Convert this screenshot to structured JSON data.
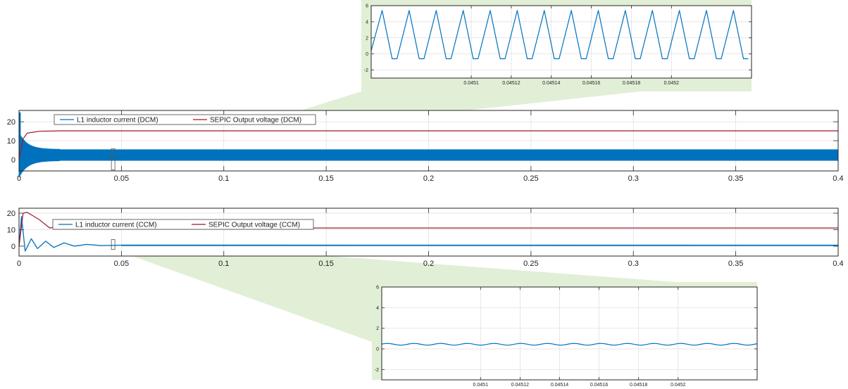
{
  "colors": {
    "current": "#0072BD",
    "voltage": "#A2142F",
    "zoom_shade": "#d7e9c8",
    "grid": "#dddddd",
    "axes": "#262626"
  },
  "chart_data": [
    {
      "id": "dcm_main",
      "type": "line",
      "title": "",
      "xlabel": "",
      "ylabel": "",
      "xlim": [
        0,
        0.4
      ],
      "ylim": [
        -6,
        26
      ],
      "xticks": [
        0,
        0.05,
        0.1,
        0.15,
        0.2,
        0.25,
        0.3,
        0.35,
        0.4
      ],
      "xtick_labels": [
        "0",
        "0.05",
        "0.1",
        "0.15",
        "0.2",
        "0.25",
        "0.3",
        "0.35",
        "0.4"
      ],
      "yticks": [
        0,
        10,
        20
      ],
      "ytick_labels": [
        "0",
        "10",
        "20"
      ],
      "grid": true,
      "legend": {
        "placement": "top-left",
        "orientation": "horizontal"
      },
      "series": [
        {
          "name": "L1 inductor current (DCM)",
          "color_key": "current",
          "description_values": {
            "min": -0.6,
            "max": 5.4,
            "start_peak": 25,
            "steady_band": [
              -0.6,
              5.4
            ]
          }
        },
        {
          "name": "SEPIC Output voltage (DCM)",
          "color_key": "voltage",
          "values_xy": [
            [
              0,
              0
            ],
            [
              0.002,
              11
            ],
            [
              0.004,
              14
            ],
            [
              0.01,
              15
            ],
            [
              0.02,
              15.2
            ],
            [
              0.4,
              15.2
            ]
          ]
        }
      ],
      "zoom_window_x": [
        0.0451,
        0.0453
      ]
    },
    {
      "id": "dcm_zoom",
      "type": "line",
      "title": "",
      "xlim": [
        0.04505,
        0.04524
      ],
      "ylim": [
        -3,
        6
      ],
      "xticks": [
        0.0451,
        0.04512,
        0.04514,
        0.04516,
        0.04518,
        0.0452
      ],
      "xtick_labels": [
        "0.0451",
        "0.04512",
        "0.04514",
        "0.04516",
        "0.04518",
        "0.0452"
      ],
      "yticks": [
        -2,
        0,
        2,
        4,
        6
      ],
      "ytick_labels": [
        "-2",
        "0",
        "2",
        "4",
        "6"
      ],
      "grid": true,
      "series": [
        {
          "name": "L1 inductor current (DCM)",
          "color_key": "current",
          "waveform": {
            "period": 1.35e-05,
            "peak": 5.4,
            "floor": -0.6,
            "rise_fraction": 0.45,
            "fall_fraction": 0.37
          }
        }
      ]
    },
    {
      "id": "ccm_main",
      "type": "line",
      "title": "",
      "xlim": [
        0,
        0.4
      ],
      "ylim": [
        -6,
        23
      ],
      "xticks": [
        0,
        0.05,
        0.1,
        0.15,
        0.2,
        0.25,
        0.3,
        0.35,
        0.4
      ],
      "xtick_labels": [
        "0",
        "0.05",
        "0.1",
        "0.15",
        "0.2",
        "0.25",
        "0.3",
        "0.35",
        "0.4"
      ],
      "yticks": [
        0,
        10,
        20
      ],
      "ytick_labels": [
        "0",
        "10",
        "20"
      ],
      "grid": true,
      "legend": {
        "placement": "top-left",
        "orientation": "horizontal"
      },
      "series": [
        {
          "name": "L1 inductor current (CCM)",
          "color_key": "current",
          "values_xy": [
            [
              0,
              0
            ],
            [
              0.0012,
              18
            ],
            [
              0.003,
              -3
            ],
            [
              0.006,
              4.5
            ],
            [
              0.009,
              -1.5
            ],
            [
              0.013,
              3
            ],
            [
              0.017,
              -0.8
            ],
            [
              0.022,
              2
            ],
            [
              0.027,
              0
            ],
            [
              0.033,
              1.1
            ],
            [
              0.04,
              0.4
            ],
            [
              0.05,
              0.6
            ],
            [
              0.4,
              0.5
            ]
          ]
        },
        {
          "name": "SEPIC Output voltage (CCM)",
          "color_key": "voltage",
          "values_xy": [
            [
              0,
              0
            ],
            [
              0.002,
              20
            ],
            [
              0.004,
              20.5
            ],
            [
              0.01,
              16
            ],
            [
              0.015,
              11
            ],
            [
              0.019,
              11.9
            ],
            [
              0.023,
              10.8
            ],
            [
              0.028,
              11.3
            ],
            [
              0.035,
              11
            ],
            [
              0.4,
              11
            ]
          ]
        }
      ],
      "zoom_window_x": [
        0.0451,
        0.0453
      ]
    },
    {
      "id": "ccm_zoom",
      "type": "line",
      "title": "",
      "xlim": [
        0.04505,
        0.04524
      ],
      "ylim": [
        -3,
        6
      ],
      "xticks": [
        0.0451,
        0.04512,
        0.04514,
        0.04516,
        0.04518,
        0.0452
      ],
      "xtick_labels": [
        "0.0451",
        "0.04512",
        "0.04514",
        "0.04516",
        "0.04518",
        "0.0452"
      ],
      "yticks": [
        -2,
        0,
        2,
        4,
        6
      ],
      "ytick_labels": [
        "-2",
        "0",
        "2",
        "4",
        "6"
      ],
      "grid": true,
      "series": [
        {
          "name": "L1 inductor current (CCM)",
          "color_key": "current",
          "waveform": {
            "period": 1.35e-05,
            "mean": 0.45,
            "amplitude": 0.08
          }
        }
      ]
    }
  ]
}
